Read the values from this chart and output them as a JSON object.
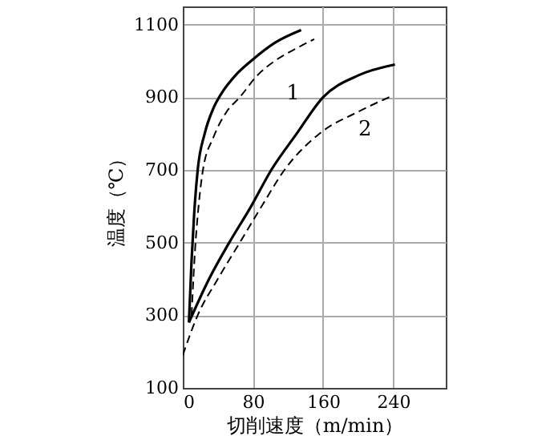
{
  "chart_data": {
    "type": "line",
    "xlabel": "切削速度（m/min）",
    "ylabel": "温度（℃）",
    "xlim": [
      0,
      300
    ],
    "ylim": [
      100,
      1150
    ],
    "xticks": [
      0,
      80,
      160,
      240
    ],
    "yticks": [
      100,
      300,
      500,
      700,
      900,
      {
        "value": 1100,
        "label": "1100"
      }
    ],
    "grid": true,
    "marker": "none",
    "series": [
      {
        "color": "#000000",
        "line_style": "solid",
        "x": [
          7,
          10,
          13,
          17,
          25,
          35,
          44,
          60,
          78,
          105,
          135
        ],
        "values": [
          280,
          450,
          580,
          700,
          800,
          870,
          910,
          960,
          1000,
          1050,
          1085
        ]
      },
      {
        "color": "#000000",
        "line_style": "dashed",
        "x": [
          10,
          14,
          18,
          23,
          35,
          50,
          65,
          85,
          105,
          130,
          150
        ],
        "values": [
          300,
          480,
          600,
          700,
          790,
          860,
          900,
          960,
          1000,
          1035,
          1060
        ]
      },
      {
        "color": "#000000",
        "line_style": "solid",
        "x": [
          7,
          30,
          53,
          78,
          101,
          130,
          160,
          200,
          242
        ],
        "values": [
          280,
          400,
          500,
          600,
          700,
          800,
          900,
          960,
          990
        ]
      },
      {
        "color": "#000000",
        "line_style": "dashed",
        "x": [
          0,
          17,
          40,
          65,
          90,
          116,
          156,
          200,
          240
        ],
        "values": [
          190,
          300,
          400,
          500,
          600,
          700,
          800,
          860,
          905
        ]
      }
    ],
    "annotations": [
      {
        "text": "1",
        "x": 78,
        "y": 1000
      },
      {
        "text": "2",
        "x": 160,
        "y": 900
      }
    ]
  }
}
